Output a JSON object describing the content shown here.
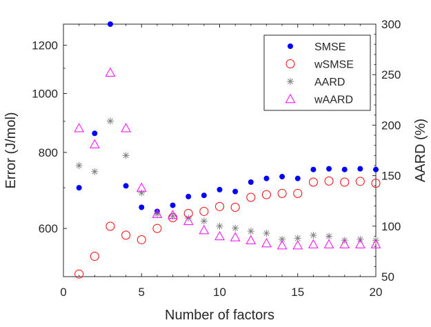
{
  "chart_data": {
    "type": "scatter",
    "title": "",
    "xlabel": "Number of factors",
    "ylabel_left": "Error (J/mol)",
    "ylabel_right": "AARD (%)",
    "xlim": [
      0,
      20
    ],
    "ylim_left": [
      500,
      1300
    ],
    "ylim_right": [
      50,
      300
    ],
    "yscale_left": "log",
    "yscale_right": "linear",
    "grid": false,
    "legend_position": "top-right",
    "x_ticks": [
      "0",
      "5",
      "10",
      "15",
      "20"
    ],
    "y_left_ticks": [
      "600",
      "800",
      "1000",
      "1200"
    ],
    "y_right_ticks": [
      "50",
      "100",
      "150",
      "200",
      "250",
      "300"
    ],
    "x": [
      1,
      2,
      3,
      4,
      5,
      6,
      7,
      8,
      9,
      10,
      11,
      12,
      13,
      14,
      15,
      16,
      17,
      18,
      19,
      20
    ],
    "series": [
      {
        "name": "SMSE",
        "axis": "left",
        "marker": "filled-circle",
        "color": "#0000ff",
        "values": [
          700,
          860,
          1300,
          705,
          650,
          640,
          655,
          677,
          680,
          695,
          690,
          715,
          725,
          730,
          725,
          750,
          752,
          750,
          752,
          750
        ]
      },
      {
        "name": "wSMSE",
        "axis": "left",
        "marker": "open-circle",
        "color": "#ff0000",
        "values": [
          505,
          540,
          605,
          585,
          575,
          600,
          625,
          635,
          640,
          652,
          650,
          675,
          682,
          685,
          685,
          715,
          718,
          715,
          717,
          712
        ]
      },
      {
        "name": "AARD",
        "axis": "right",
        "marker": "asterisk",
        "color": "#808080",
        "values": [
          160,
          154,
          204,
          170,
          133,
          112,
          110,
          108,
          105,
          100,
          98,
          95,
          93,
          87,
          88,
          91,
          90,
          86,
          87,
          86
        ]
      },
      {
        "name": "wAARD",
        "axis": "right",
        "marker": "open-triangle",
        "color": "#ff00ff",
        "values": [
          197,
          181,
          252,
          197,
          138,
          112,
          111,
          105,
          96,
          90,
          89,
          86,
          83,
          81,
          81,
          82,
          82,
          82,
          82,
          82
        ]
      }
    ]
  }
}
